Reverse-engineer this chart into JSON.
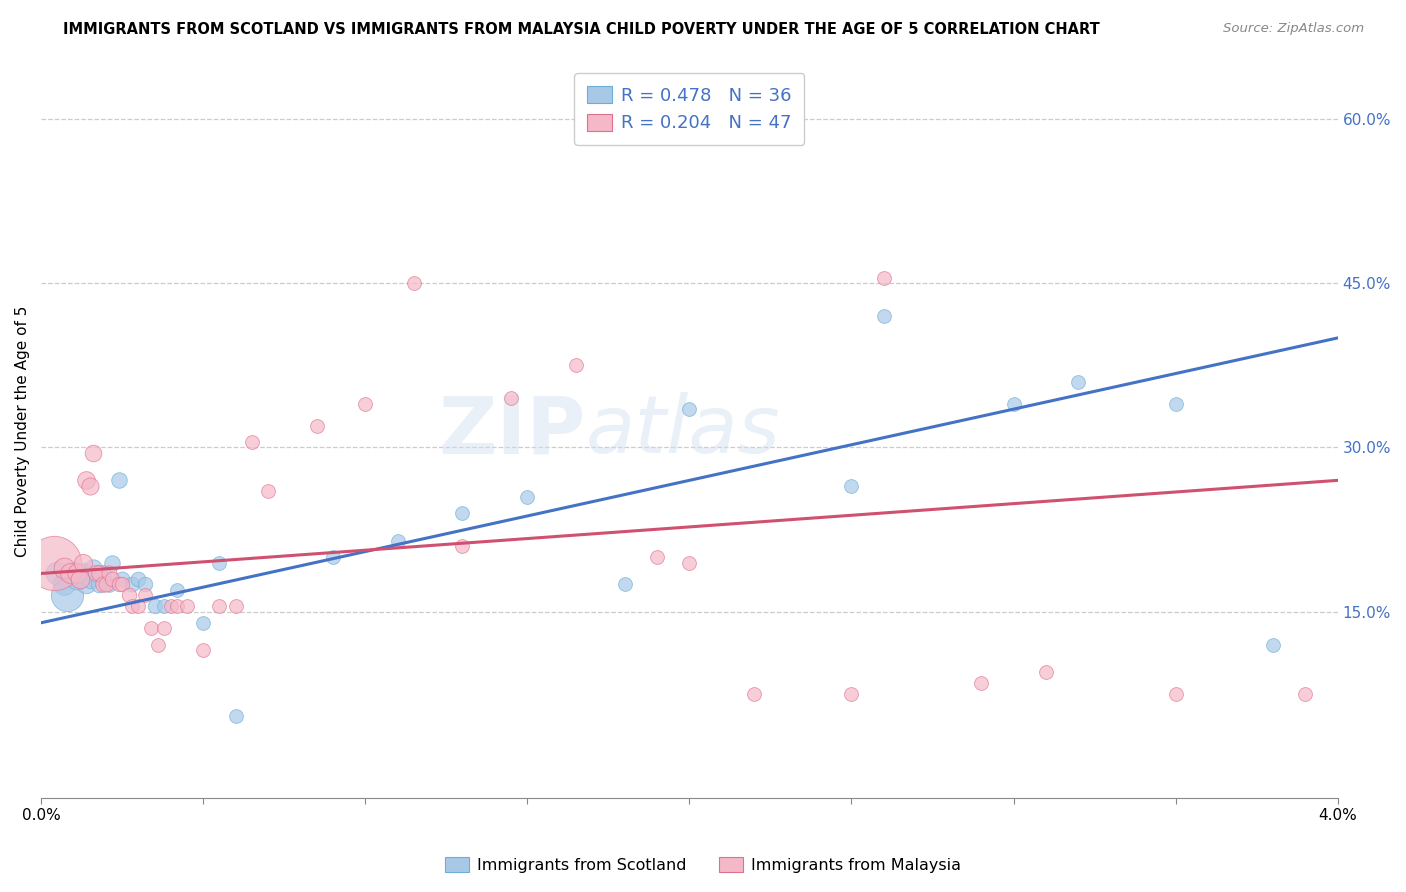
{
  "title": "IMMIGRANTS FROM SCOTLAND VS IMMIGRANTS FROM MALAYSIA CHILD POVERTY UNDER THE AGE OF 5 CORRELATION CHART",
  "source": "Source: ZipAtlas.com",
  "ylabel": "Child Poverty Under the Age of 5",
  "right_yticks": [
    0.15,
    0.3,
    0.45,
    0.6
  ],
  "right_yticklabels": [
    "15.0%",
    "30.0%",
    "45.0%",
    "60.0%"
  ],
  "xlim": [
    0.0,
    0.04
  ],
  "ylim": [
    -0.02,
    0.65
  ],
  "scotland_color": "#a8c8e8",
  "scotland_edge": "#6baed6",
  "malaysia_color": "#f4b8c8",
  "malaysia_edge": "#e07090",
  "scotland_line_color": "#4472c4",
  "malaysia_line_color": "#d05070",
  "scotland_R": 0.478,
  "scotland_N": 36,
  "malaysia_R": 0.204,
  "malaysia_N": 47,
  "legend_label_1": "Immigrants from Scotland",
  "legend_label_2": "Immigrants from Malaysia",
  "watermark": "ZIPAtlas",
  "scotland_points": [
    [
      0.0005,
      0.185,
      60
    ],
    [
      0.0007,
      0.175,
      55
    ],
    [
      0.0008,
      0.165,
      120
    ],
    [
      0.001,
      0.185,
      55
    ],
    [
      0.0011,
      0.18,
      50
    ],
    [
      0.0013,
      0.185,
      45
    ],
    [
      0.0014,
      0.175,
      40
    ],
    [
      0.0015,
      0.18,
      38
    ],
    [
      0.0016,
      0.19,
      35
    ],
    [
      0.0018,
      0.175,
      32
    ],
    [
      0.0019,
      0.185,
      30
    ],
    [
      0.0021,
      0.175,
      28
    ],
    [
      0.0022,
      0.195,
      28
    ],
    [
      0.0024,
      0.27,
      28
    ],
    [
      0.0025,
      0.18,
      26
    ],
    [
      0.0028,
      0.175,
      25
    ],
    [
      0.003,
      0.18,
      25
    ],
    [
      0.0032,
      0.175,
      24
    ],
    [
      0.0035,
      0.155,
      24
    ],
    [
      0.0038,
      0.155,
      22
    ],
    [
      0.0042,
      0.17,
      22
    ],
    [
      0.005,
      0.14,
      22
    ],
    [
      0.0055,
      0.195,
      22
    ],
    [
      0.006,
      0.055,
      22
    ],
    [
      0.009,
      0.2,
      22
    ],
    [
      0.011,
      0.215,
      22
    ],
    [
      0.013,
      0.24,
      22
    ],
    [
      0.015,
      0.255,
      22
    ],
    [
      0.018,
      0.175,
      22
    ],
    [
      0.02,
      0.335,
      22
    ],
    [
      0.025,
      0.265,
      22
    ],
    [
      0.026,
      0.42,
      22
    ],
    [
      0.03,
      0.34,
      22
    ],
    [
      0.032,
      0.36,
      22
    ],
    [
      0.035,
      0.34,
      22
    ],
    [
      0.038,
      0.12,
      22
    ]
  ],
  "malaysia_points": [
    [
      0.0004,
      0.195,
      340
    ],
    [
      0.0007,
      0.19,
      50
    ],
    [
      0.0009,
      0.185,
      45
    ],
    [
      0.0011,
      0.185,
      42
    ],
    [
      0.0012,
      0.18,
      40
    ],
    [
      0.0013,
      0.195,
      38
    ],
    [
      0.0014,
      0.27,
      36
    ],
    [
      0.0015,
      0.265,
      34
    ],
    [
      0.0016,
      0.295,
      32
    ],
    [
      0.0017,
      0.185,
      30
    ],
    [
      0.0018,
      0.185,
      28
    ],
    [
      0.0019,
      0.175,
      28
    ],
    [
      0.002,
      0.175,
      26
    ],
    [
      0.0021,
      0.185,
      26
    ],
    [
      0.0022,
      0.18,
      24
    ],
    [
      0.0024,
      0.175,
      24
    ],
    [
      0.0025,
      0.175,
      24
    ],
    [
      0.0027,
      0.165,
      24
    ],
    [
      0.0028,
      0.155,
      22
    ],
    [
      0.003,
      0.155,
      22
    ],
    [
      0.0032,
      0.165,
      22
    ],
    [
      0.0034,
      0.135,
      22
    ],
    [
      0.0036,
      0.12,
      22
    ],
    [
      0.0038,
      0.135,
      22
    ],
    [
      0.004,
      0.155,
      22
    ],
    [
      0.0042,
      0.155,
      22
    ],
    [
      0.0045,
      0.155,
      22
    ],
    [
      0.005,
      0.115,
      22
    ],
    [
      0.0055,
      0.155,
      22
    ],
    [
      0.006,
      0.155,
      22
    ],
    [
      0.0065,
      0.305,
      22
    ],
    [
      0.007,
      0.26,
      22
    ],
    [
      0.0085,
      0.32,
      22
    ],
    [
      0.01,
      0.34,
      22
    ],
    [
      0.0115,
      0.45,
      22
    ],
    [
      0.013,
      0.21,
      22
    ],
    [
      0.0145,
      0.345,
      22
    ],
    [
      0.0165,
      0.375,
      22
    ],
    [
      0.019,
      0.2,
      22
    ],
    [
      0.02,
      0.195,
      22
    ],
    [
      0.022,
      0.075,
      22
    ],
    [
      0.025,
      0.075,
      22
    ],
    [
      0.026,
      0.455,
      22
    ],
    [
      0.029,
      0.085,
      22
    ],
    [
      0.031,
      0.095,
      22
    ],
    [
      0.035,
      0.075,
      22
    ],
    [
      0.039,
      0.075,
      22
    ]
  ],
  "scotland_line": [
    0.0,
    0.14,
    0.04,
    0.4
  ],
  "malaysia_line": [
    0.0,
    0.185,
    0.04,
    0.27
  ],
  "grid_color": "#cccccc",
  "background_color": "#ffffff",
  "title_fontsize": 10.5,
  "axis_label_color": "#4472c4"
}
